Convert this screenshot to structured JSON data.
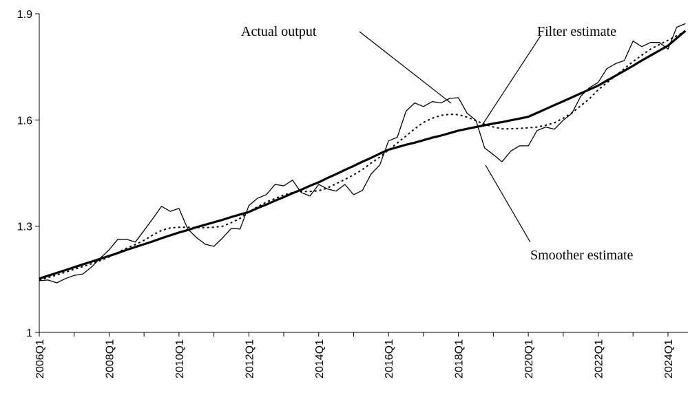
{
  "chart_data": {
    "type": "line",
    "categories": [
      "2006Q1",
      null,
      null,
      null,
      null,
      null,
      null,
      null,
      "2008Q1",
      null,
      null,
      null,
      null,
      null,
      null,
      null,
      "2010Q1",
      null,
      null,
      null,
      null,
      null,
      null,
      null,
      "2012Q1",
      null,
      null,
      null,
      null,
      null,
      null,
      null,
      "2014Q1",
      null,
      null,
      null,
      null,
      null,
      null,
      null,
      "2016Q1",
      null,
      null,
      null,
      null,
      null,
      null,
      null,
      "2018Q1",
      null,
      null,
      null,
      null,
      null,
      null,
      null,
      "2020Q1",
      null,
      null,
      null,
      null,
      null,
      null,
      null,
      "2022Q1",
      null,
      null,
      null,
      null,
      null,
      null,
      null,
      "2024Q1",
      null,
      null
    ],
    "series": [
      {
        "name": "Actual output",
        "color": "#000000",
        "values": [
          1.146,
          1.148,
          1.14,
          1.152,
          1.161,
          1.165,
          1.185,
          1.21,
          1.233,
          1.263,
          1.263,
          1.255,
          1.288,
          1.321,
          1.356,
          1.342,
          1.35,
          1.292,
          1.268,
          1.249,
          1.243,
          1.267,
          1.294,
          1.292,
          1.358,
          1.379,
          1.389,
          1.418,
          1.414,
          1.43,
          1.395,
          1.385,
          1.418,
          1.405,
          1.399,
          1.418,
          1.389,
          1.401,
          1.447,
          1.473,
          1.541,
          1.551,
          1.625,
          1.648,
          1.638,
          1.652,
          1.648,
          1.661,
          1.663,
          1.619,
          1.599,
          1.521,
          1.502,
          1.482,
          1.512,
          1.527,
          1.527,
          1.57,
          1.58,
          1.574,
          1.599,
          1.619,
          1.667,
          1.691,
          1.706,
          1.745,
          1.759,
          1.768,
          1.823,
          1.807,
          1.819,
          1.819,
          1.8,
          1.862,
          1.872
        ]
      },
      {
        "name": "Filter estimate",
        "color": "#000000",
        "values": [
          1.152,
          1.16,
          1.168,
          1.176,
          1.184,
          1.192,
          1.2,
          1.208,
          1.216,
          1.224,
          1.233,
          1.241,
          1.249,
          1.257,
          1.266,
          1.274,
          1.282,
          1.289,
          1.297,
          1.304,
          1.311,
          1.318,
          1.326,
          1.333,
          1.34,
          1.351,
          1.361,
          1.372,
          1.382,
          1.393,
          1.403,
          1.414,
          1.424,
          1.436,
          1.447,
          1.459,
          1.47,
          1.482,
          1.493,
          1.505,
          1.516,
          1.523,
          1.53,
          1.536,
          1.543,
          1.55,
          1.556,
          1.563,
          1.57,
          1.575,
          1.58,
          1.585,
          1.59,
          1.594,
          1.599,
          1.604,
          1.609,
          1.62,
          1.631,
          1.642,
          1.653,
          1.664,
          1.675,
          1.686,
          1.697,
          1.711,
          1.725,
          1.739,
          1.753,
          1.768,
          1.782,
          1.796,
          1.81,
          1.831,
          1.852
        ]
      },
      {
        "name": "Smoother estimate",
        "color": "#000000",
        "values": [
          1.148,
          1.155,
          1.162,
          1.17,
          1.178,
          1.186,
          1.194,
          1.203,
          1.213,
          1.226,
          1.238,
          1.248,
          1.26,
          1.275,
          1.288,
          1.295,
          1.297,
          1.297,
          1.296,
          1.296,
          1.297,
          1.3,
          1.31,
          1.322,
          1.34,
          1.355,
          1.368,
          1.378,
          1.388,
          1.395,
          1.398,
          1.398,
          1.4,
          1.408,
          1.42,
          1.432,
          1.445,
          1.46,
          1.478,
          1.495,
          1.515,
          1.535,
          1.555,
          1.575,
          1.593,
          1.605,
          1.613,
          1.616,
          1.615,
          1.608,
          1.598,
          1.588,
          1.58,
          1.575,
          1.575,
          1.576,
          1.578,
          1.58,
          1.585,
          1.592,
          1.605,
          1.62,
          1.64,
          1.66,
          1.685,
          1.705,
          1.725,
          1.745,
          1.765,
          1.783,
          1.8,
          1.813,
          1.825,
          1.838,
          1.85
        ]
      }
    ],
    "ylim": [
      1,
      1.9
    ],
    "yticks": [
      1,
      1.3,
      1.6,
      1.9
    ]
  }
}
